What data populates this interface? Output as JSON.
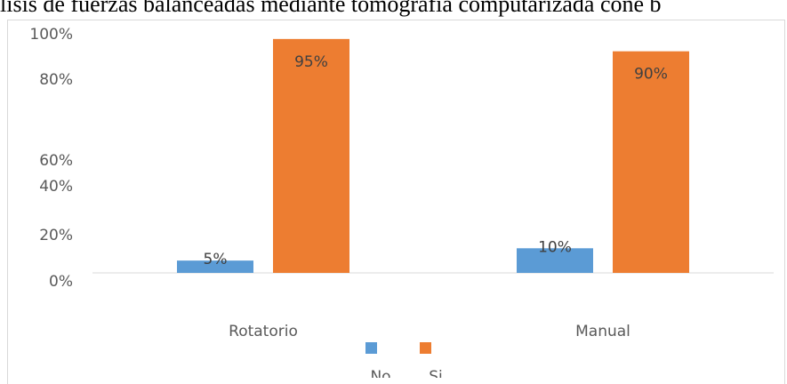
{
  "chart_data": {
    "type": "bar",
    "title": "lisis de fuerzas balanceadas mediante tomografía computarizada cone b",
    "categories": [
      "Rotatorio",
      "Manual"
    ],
    "series": [
      {
        "name": "No",
        "values": [
          5,
          10
        ],
        "labels": [
          "5%",
          "10%"
        ],
        "color": "#5b9bd5"
      },
      {
        "name": "Si",
        "values": [
          95,
          90
        ],
        "labels": [
          "95%",
          "90%"
        ],
        "color": "#ed7d31"
      }
    ],
    "y_ticks": [
      "0%",
      "20%",
      "40%",
      "60%",
      "80%",
      "100%"
    ],
    "ylim": [
      0,
      100
    ],
    "grid": false,
    "legend_position": "bottom"
  }
}
